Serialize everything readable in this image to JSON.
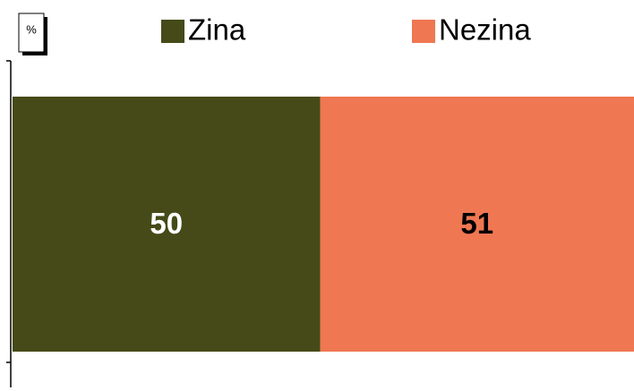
{
  "chart_data": {
    "type": "bar",
    "orientation": "horizontal",
    "stacked": true,
    "unit_label": "%",
    "categories": [
      null
    ],
    "series": [
      {
        "name": "Zina",
        "color": "#454a18",
        "label_color": "#ffffff",
        "values": [
          50
        ]
      },
      {
        "name": "Nezina",
        "color": "#ef7752",
        "label_color": "#000000",
        "values": [
          51
        ]
      }
    ]
  }
}
